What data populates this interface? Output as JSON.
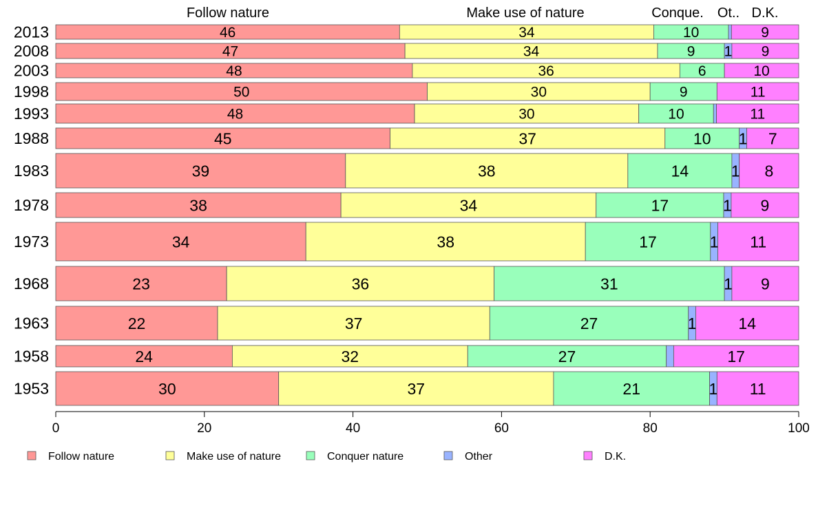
{
  "chart_data": {
    "type": "bar",
    "orientation": "horizontal",
    "stacked": true,
    "column_headers": [
      "Follow nature",
      "Make use of nature",
      "Conque.",
      "Ot..",
      "D.K."
    ],
    "categories": [
      "2013",
      "2008",
      "2003",
      "1998",
      "1993",
      "1988",
      "1983",
      "1978",
      "1973",
      "1968",
      "1963",
      "1958",
      "1953"
    ],
    "series": [
      {
        "name": "Follow nature",
        "color": "#ff9896",
        "values": [
          46,
          47,
          48,
          50,
          48,
          45,
          39,
          38,
          34,
          23,
          22,
          24,
          30
        ]
      },
      {
        "name": "Make use of nature",
        "color": "#ffff99",
        "values": [
          34,
          34,
          36,
          30,
          30,
          37,
          38,
          34,
          38,
          36,
          37,
          32,
          37
        ]
      },
      {
        "name": "Conquer nature",
        "color": "#99ffbb",
        "values": [
          10,
          9,
          6,
          9,
          10,
          10,
          14,
          17,
          17,
          31,
          27,
          27,
          21
        ]
      },
      {
        "name": "Other",
        "color": "#99b3ff",
        "values": [
          0.4,
          1,
          0,
          0,
          0.4,
          1,
          1,
          1,
          1,
          1,
          1,
          1,
          1
        ]
      },
      {
        "name": "D.K.",
        "color": "#ff80ff",
        "values": [
          9,
          9,
          10,
          11,
          11,
          7,
          8,
          9,
          11,
          9,
          14,
          17,
          11
        ]
      }
    ],
    "segment_labels": [
      [
        "46",
        "34",
        "10",
        "",
        "9"
      ],
      [
        "47",
        "34",
        "9",
        "1",
        "9"
      ],
      [
        "48",
        "36",
        "6",
        "",
        "10"
      ],
      [
        "50",
        "30",
        "9",
        "",
        "11"
      ],
      [
        "48",
        "30",
        "10",
        "",
        "11"
      ],
      [
        "45",
        "37",
        "10",
        "1",
        "7"
      ],
      [
        "39",
        "38",
        "14",
        "1",
        "8"
      ],
      [
        "38",
        "34",
        "17",
        "1",
        "9"
      ],
      [
        "34",
        "38",
        "17",
        "1",
        "11"
      ],
      [
        "23",
        "36",
        "31",
        "1",
        "9"
      ],
      [
        "22",
        "37",
        "27",
        "1",
        "14"
      ],
      [
        "24",
        "32",
        "27",
        "",
        "17"
      ],
      [
        "30",
        "37",
        "21",
        "1",
        "11"
      ]
    ],
    "xlim": [
      0,
      100
    ],
    "x_ticks": [
      "0",
      "20",
      "40",
      "60",
      "80",
      "100"
    ],
    "legend_position": "bottom",
    "legend_entries": [
      "Follow nature",
      "Make use of nature",
      "Conquer nature",
      "Other",
      "D.K."
    ]
  }
}
